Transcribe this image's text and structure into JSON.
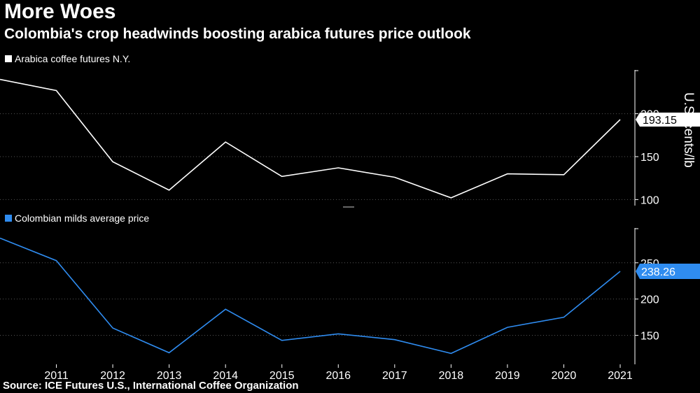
{
  "title": "More Woes",
  "subtitle": "Colombia's crop headwinds boosting arabica futures price outlook",
  "source": "Source: ICE Futures U.S., International  Coffee Organization",
  "chart_data": [
    {
      "type": "line",
      "legend": "Arabica coffee futures N.Y.",
      "unit_label": "U.S. cents/lb",
      "color": "#ffffff",
      "x": [
        2010,
        2011,
        2012,
        2013,
        2014,
        2015,
        2016,
        2017,
        2018,
        2019,
        2020,
        2021
      ],
      "values": [
        240,
        227,
        144,
        111,
        167,
        127,
        137,
        126,
        102,
        130,
        129,
        193.15
      ],
      "yticks": [
        100,
        150,
        200
      ],
      "ylim": [
        93,
        251
      ],
      "last_value_label": "193.15",
      "grid": true
    },
    {
      "type": "line",
      "legend": "Colombian milds average price",
      "color": "#2f8cf0",
      "x": [
        2010,
        2011,
        2012,
        2013,
        2014,
        2015,
        2016,
        2017,
        2018,
        2019,
        2020,
        2021
      ],
      "values": [
        284,
        253,
        160,
        126,
        186,
        143,
        152,
        144,
        125,
        161,
        175,
        238.26
      ],
      "yticks": [
        150,
        200,
        250
      ],
      "ylim": [
        110,
        298
      ],
      "last_value_label": "238.26",
      "grid": true
    }
  ],
  "x_tick_labels": [
    "2011",
    "2012",
    "2013",
    "2014",
    "2015",
    "2016",
    "2017",
    "2018",
    "2019",
    "2020",
    "2021"
  ]
}
